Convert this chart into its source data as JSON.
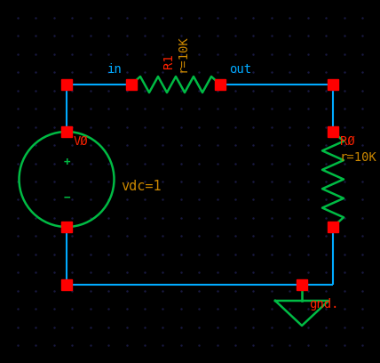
{
  "bg_color": "#000000",
  "wire_color": "#00aaff",
  "resistor_color": "#00bb44",
  "node_color": "#ff0000",
  "label_color_cyan": "#00aaff",
  "label_color_orange": "#cc8800",
  "label_color_red": "#ff2200",
  "dot_color": "#1a1a44",
  "in_label": "in",
  "out_label": "out",
  "v0_label": "VØ",
  "vdc_label": "vdc=1",
  "r1_label": "R1",
  "r1_val": "r=10K",
  "r0_label": "RØ",
  "r0_val": "r=10K",
  "gnd_label": "gnd."
}
